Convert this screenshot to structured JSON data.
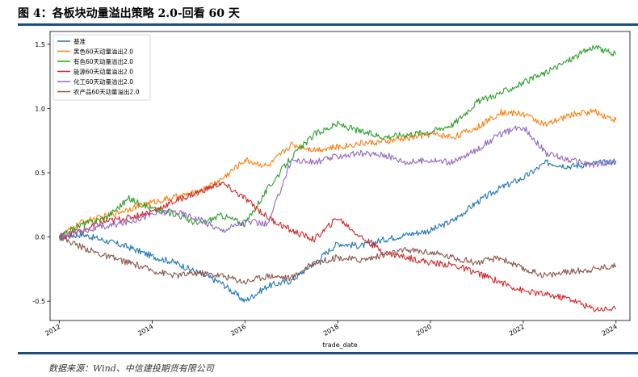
{
  "figure_title": "图 4：各板块动量溢出策略 2.0-回看 60 天",
  "source_note": "数据来源：Wind、中信建投期货有限公司",
  "chart_data": {
    "type": "line",
    "title": "",
    "xlabel": "trade_date",
    "ylabel": "",
    "xlim": [
      2011.8,
      2024.3
    ],
    "ylim": [
      -0.65,
      1.6
    ],
    "x_ticks": [
      2012,
      2014,
      2016,
      2018,
      2020,
      2022,
      2024
    ],
    "x_tick_labels": [
      "2012",
      "2014",
      "2016",
      "2018",
      "2020",
      "2022",
      "2024"
    ],
    "y_ticks": [
      -0.5,
      0.0,
      0.5,
      1.0,
      1.5
    ],
    "y_tick_labels": [
      "-0.5",
      "0.0",
      "0.5",
      "1.0",
      "1.5"
    ],
    "grid": false,
    "legend_position": "top-left",
    "x": [
      2012.0,
      2012.5,
      2013.0,
      2013.5,
      2014.0,
      2014.5,
      2015.0,
      2015.5,
      2016.0,
      2016.5,
      2017.0,
      2017.5,
      2018.0,
      2018.5,
      2019.0,
      2019.5,
      2020.0,
      2020.5,
      2021.0,
      2021.5,
      2022.0,
      2022.5,
      2023.0,
      2023.5,
      2024.0
    ],
    "series": [
      {
        "name": "基准",
        "color": "#1f77b4",
        "values": [
          0.0,
          0.02,
          -0.03,
          -0.08,
          -0.15,
          -0.2,
          -0.28,
          -0.36,
          -0.5,
          -0.38,
          -0.34,
          -0.2,
          -0.05,
          -0.07,
          -0.02,
          0.02,
          0.05,
          0.13,
          0.27,
          0.38,
          0.46,
          0.58,
          0.55,
          0.57,
          0.59
        ]
      },
      {
        "name": "黑色60天动量溢出2.0",
        "color": "#ff7f0e",
        "values": [
          0.0,
          0.12,
          0.16,
          0.22,
          0.27,
          0.31,
          0.35,
          0.45,
          0.6,
          0.55,
          0.72,
          0.68,
          0.7,
          0.73,
          0.74,
          0.77,
          0.8,
          0.78,
          0.85,
          0.97,
          0.96,
          0.87,
          0.95,
          0.98,
          0.91
        ]
      },
      {
        "name": "有色60天动量溢出2.0",
        "color": "#2ca02c",
        "values": [
          0.0,
          0.1,
          0.15,
          0.3,
          0.22,
          0.18,
          0.1,
          0.17,
          0.1,
          0.38,
          0.62,
          0.8,
          0.88,
          0.82,
          0.78,
          0.8,
          0.82,
          0.88,
          1.05,
          1.12,
          1.2,
          1.28,
          1.38,
          1.48,
          1.42
        ]
      },
      {
        "name": "能源60天动量溢出2.0",
        "color": "#d62728",
        "values": [
          0.0,
          0.05,
          0.12,
          0.15,
          0.2,
          0.28,
          0.35,
          0.42,
          0.3,
          0.15,
          0.05,
          -0.02,
          0.15,
          0.0,
          -0.12,
          -0.16,
          -0.2,
          -0.22,
          -0.28,
          -0.35,
          -0.42,
          -0.45,
          -0.48,
          -0.56,
          -0.56
        ]
      },
      {
        "name": "化工60天动量溢出2.0",
        "color": "#9467bd",
        "values": [
          0.0,
          0.05,
          0.08,
          0.12,
          0.18,
          0.2,
          0.14,
          0.05,
          0.12,
          0.1,
          0.6,
          0.58,
          0.63,
          0.65,
          0.64,
          0.58,
          0.6,
          0.58,
          0.68,
          0.8,
          0.86,
          0.65,
          0.6,
          0.56,
          0.59
        ]
      },
      {
        "name": "农产品60天动量溢出2.0",
        "color": "#8c564b",
        "values": [
          0.0,
          -0.08,
          -0.15,
          -0.2,
          -0.26,
          -0.3,
          -0.28,
          -0.3,
          -0.35,
          -0.3,
          -0.32,
          -0.2,
          -0.16,
          -0.18,
          -0.14,
          -0.1,
          -0.12,
          -0.16,
          -0.2,
          -0.16,
          -0.25,
          -0.3,
          -0.27,
          -0.25,
          -0.22
        ]
      }
    ]
  }
}
